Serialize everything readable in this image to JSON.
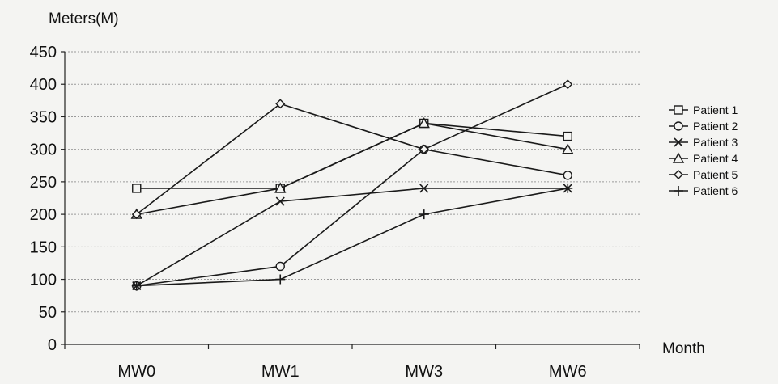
{
  "chart_data": {
    "type": "line",
    "title": "",
    "ylabel": "Meters(M)",
    "xlabel": "Month",
    "categories": [
      "MW0",
      "MW1",
      "MW3",
      "MW6"
    ],
    "ylim": [
      0,
      450
    ],
    "yticks": [
      0,
      50,
      100,
      150,
      200,
      250,
      300,
      350,
      400,
      450
    ],
    "grid": "horizontal",
    "legend_position": "right",
    "series": [
      {
        "name": "Patient 1",
        "marker": "square",
        "values": [
          240,
          240,
          340,
          320
        ]
      },
      {
        "name": "Patient 2",
        "marker": "circle",
        "values": [
          90,
          120,
          300,
          260
        ]
      },
      {
        "name": "Patient 3",
        "marker": "x",
        "values": [
          90,
          220,
          240,
          240
        ]
      },
      {
        "name": "Patient 4",
        "marker": "triangle",
        "values": [
          200,
          240,
          340,
          300
        ]
      },
      {
        "name": "Patient 5",
        "marker": "diamond",
        "values": [
          200,
          370,
          300,
          400
        ]
      },
      {
        "name": "Patient 6",
        "marker": "plus",
        "values": [
          90,
          100,
          200,
          240
        ]
      }
    ]
  }
}
